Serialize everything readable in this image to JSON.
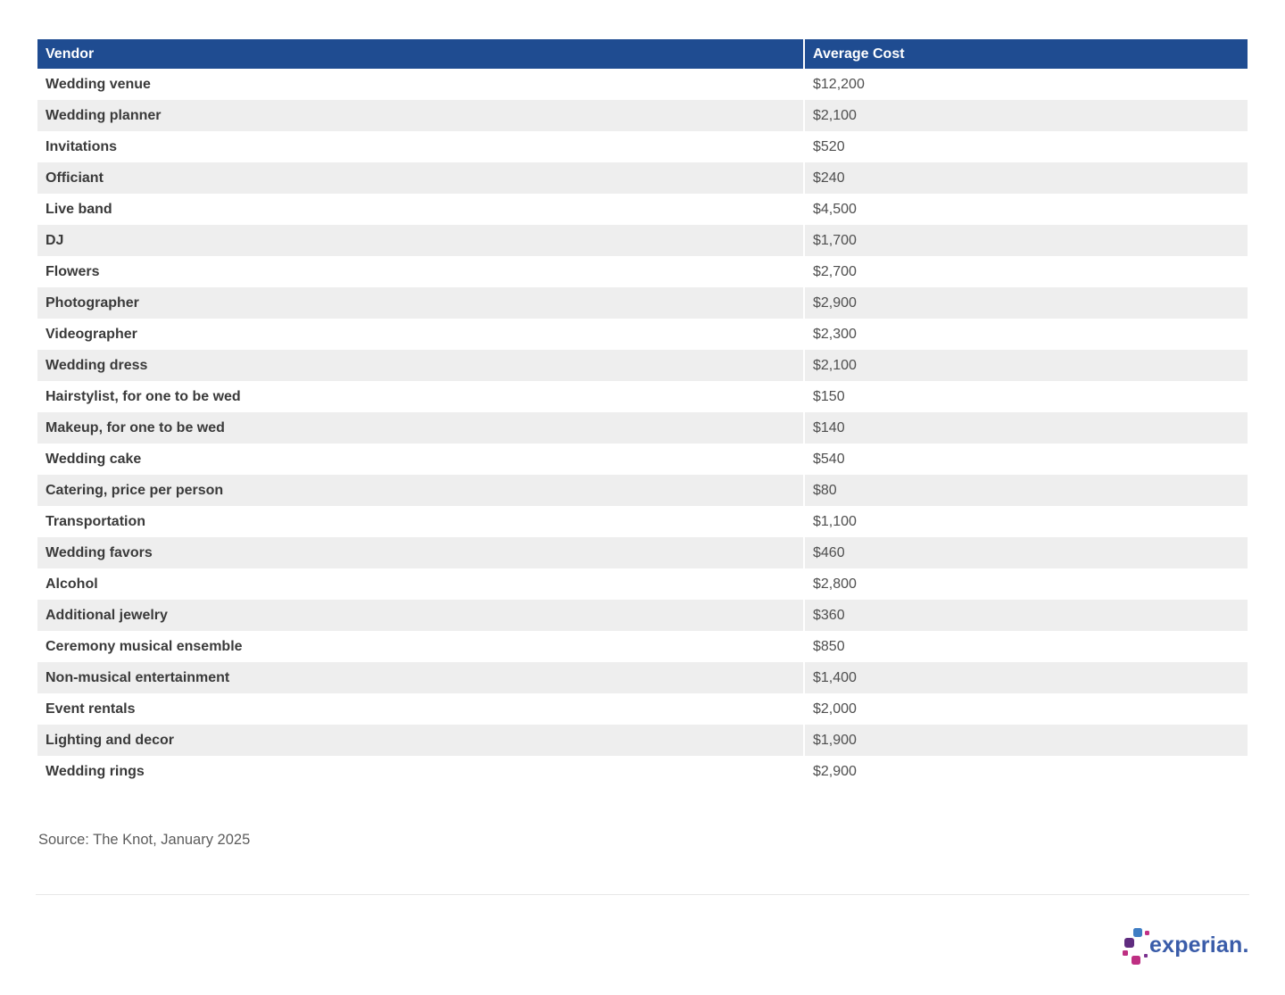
{
  "chart_data": {
    "type": "table",
    "columns": [
      "Vendor",
      "Average Cost"
    ],
    "rows": [
      [
        "Wedding venue",
        "$12,200"
      ],
      [
        "Wedding planner",
        "$2,100"
      ],
      [
        "Invitations",
        "$520"
      ],
      [
        "Officiant",
        "$240"
      ],
      [
        "Live band",
        "$4,500"
      ],
      [
        "DJ",
        "$1,700"
      ],
      [
        "Flowers",
        "$2,700"
      ],
      [
        "Photographer",
        "$2,900"
      ],
      [
        "Videographer",
        "$2,300"
      ],
      [
        "Wedding dress",
        "$2,100"
      ],
      [
        "Hairstylist, for one to be wed",
        "$150"
      ],
      [
        "Makeup, for one to be wed",
        "$140"
      ],
      [
        "Wedding cake",
        "$540"
      ],
      [
        "Catering, price per person",
        "$80"
      ],
      [
        "Transportation",
        "$1,100"
      ],
      [
        "Wedding favors",
        "$460"
      ],
      [
        "Alcohol",
        "$2,800"
      ],
      [
        "Additional jewelry",
        "$360"
      ],
      [
        "Ceremony musical ensemble",
        "$850"
      ],
      [
        "Non-musical entertainment",
        "$1,400"
      ],
      [
        "Event rentals",
        "$2,000"
      ],
      [
        "Lighting and decor",
        "$1,900"
      ],
      [
        "Wedding rings",
        "$2,900"
      ]
    ],
    "layout": "striped-rows, header bar on top, left-aligned text"
  },
  "footer": {
    "source": "Source: The Knot, January 2025"
  },
  "logo": {
    "brand": "experian",
    "suffix": "."
  },
  "colors": {
    "header_bg": "#1F4C91",
    "header_text": "#FFFFFF",
    "row_stripe": "#EEEEEE",
    "vendor_text": "#3A3A3A",
    "cost_text": "#4F4F4F",
    "source_text": "#5C5C5C",
    "divider": "#E8E8E8",
    "logo_wordmark": "#3A5CA9",
    "logo_blue": "#3F7DC4",
    "logo_purple": "#5F2C7F",
    "logo_magenta": "#BE2F82",
    "logo_pink": "#C23186",
    "logo_violet": "#7B3390"
  }
}
